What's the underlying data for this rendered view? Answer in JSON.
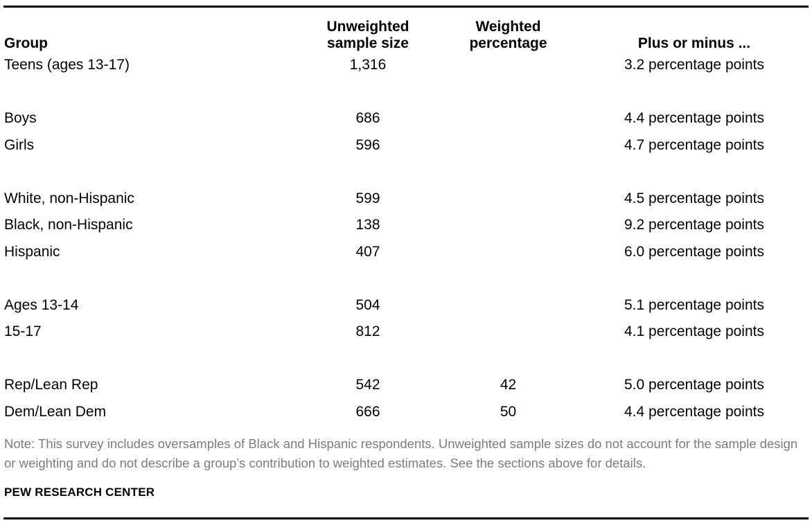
{
  "page": {
    "background": "#ffffff",
    "rule_color": "#000000",
    "text_color": "#000000",
    "note_color": "#7c7c7c"
  },
  "table": {
    "headers": {
      "group": "Group",
      "unweighted": "Unweighted sample size",
      "weighted": "Weighted percentage",
      "plus_minus": "Plus or minus ..."
    },
    "rows": [
      {
        "group": "Teens (ages 13-17)",
        "unweighted": "1,316",
        "weighted": "",
        "plus_minus": "3.2 percentage points"
      },
      {
        "group": "Boys",
        "unweighted": "686",
        "weighted": "",
        "plus_minus": "4.4 percentage points"
      },
      {
        "group": "Girls",
        "unweighted": "596",
        "weighted": "",
        "plus_minus": "4.7 percentage points"
      },
      {
        "group": "White, non-Hispanic",
        "unweighted": "599",
        "weighted": "",
        "plus_minus": "4.5 percentage points"
      },
      {
        "group": "Black, non-Hispanic",
        "unweighted": "138",
        "weighted": "",
        "plus_minus": "9.2 percentage points"
      },
      {
        "group": "Hispanic",
        "unweighted": "407",
        "weighted": "",
        "plus_minus": "6.0 percentage points"
      },
      {
        "group": "Ages 13-14",
        "unweighted": "504",
        "weighted": "",
        "plus_minus": "5.1 percentage points"
      },
      {
        "group": "15-17",
        "unweighted": "812",
        "weighted": "",
        "plus_minus": "4.1 percentage points"
      },
      {
        "group": "Rep/Lean Rep",
        "unweighted": "542",
        "weighted": "42",
        "plus_minus": "5.0 percentage points"
      },
      {
        "group": "Dem/Lean Dem",
        "unweighted": "666",
        "weighted": "50",
        "plus_minus": "4.4 percentage points"
      }
    ]
  },
  "note": "Note: This survey includes oversamples of Black and Hispanic respondents. Unweighted sample sizes do not account for the sample design or weighting and do not describe a group’s contribution to weighted estimates. See the sections above for details.",
  "source": "PEW RESEARCH CENTER"
}
